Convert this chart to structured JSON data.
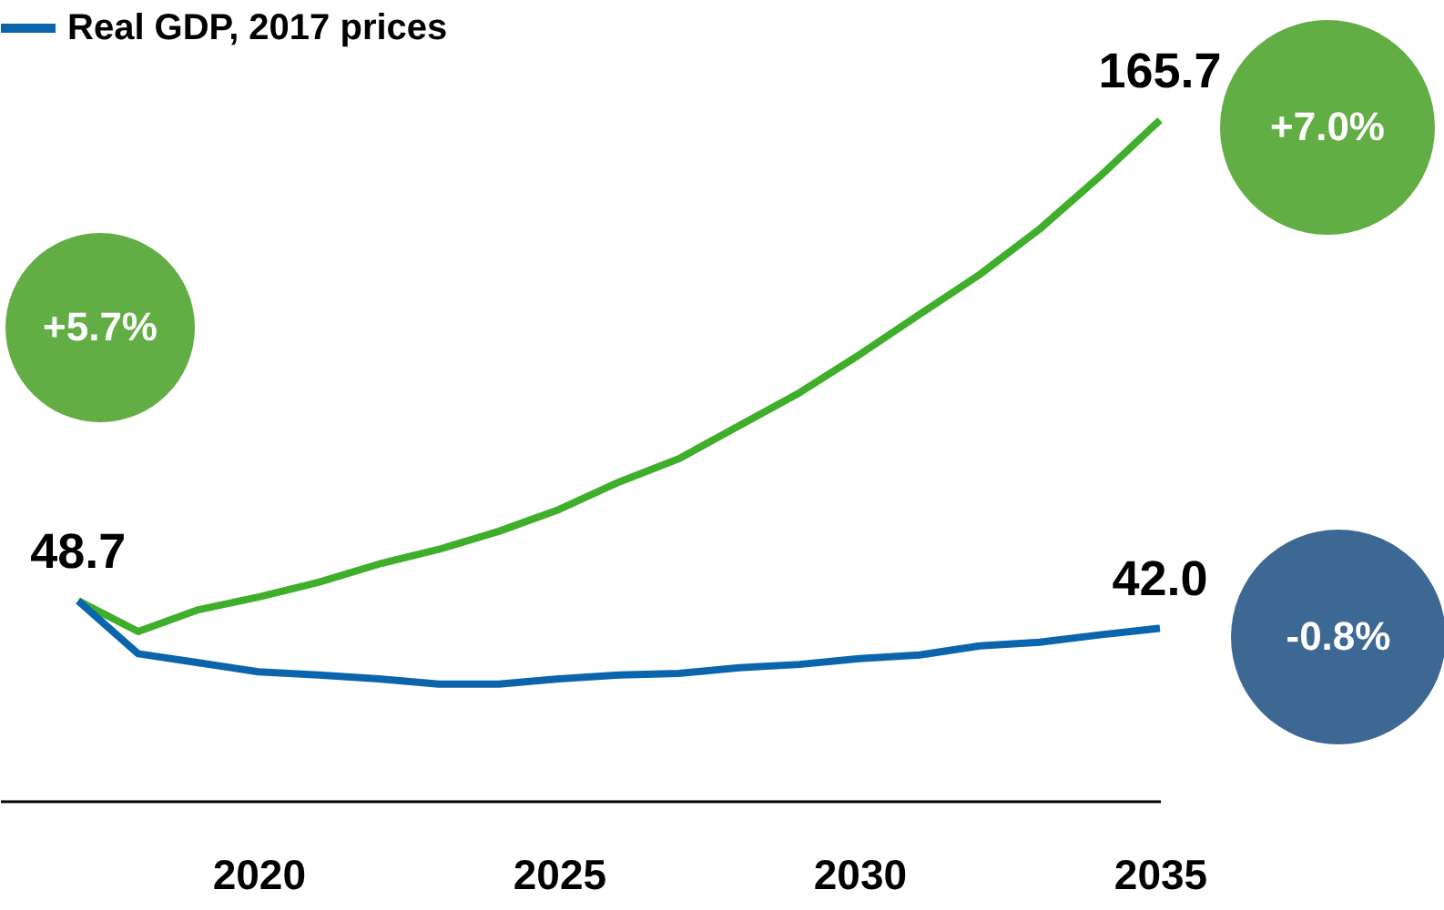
{
  "chart_data": {
    "type": "line",
    "x": [
      2017,
      2018,
      2019,
      2020,
      2021,
      2022,
      2023,
      2024,
      2025,
      2026,
      2027,
      2028,
      2029,
      2030,
      2031,
      2032,
      2033,
      2034,
      2035
    ],
    "series": [
      {
        "color": "#3fae2a",
        "values": [
          48.7,
          41.2,
          46.5,
          49.6,
          53.2,
          57.6,
          61.2,
          65.6,
          70.9,
          77.6,
          83.3,
          91.3,
          99.3,
          108.6,
          118.4,
          128.1,
          139.2,
          152.0,
          165.7
        ],
        "value_labels": [
          null,
          null,
          null,
          null,
          null,
          null,
          null,
          null,
          null,
          null,
          null,
          null,
          null,
          null,
          null,
          null,
          null,
          null,
          "165.7"
        ]
      },
      {
        "name": "Real GDP, 2017 prices",
        "color": "#0a65ad",
        "values": [
          48.7,
          35.8,
          33.6,
          31.4,
          30.6,
          29.7,
          28.4,
          28.4,
          29.7,
          30.6,
          31.0,
          32.4,
          33.2,
          34.6,
          35.5,
          37.7,
          38.6,
          40.4,
          42.0
        ],
        "value_labels": [
          "48.7",
          null,
          null,
          null,
          null,
          null,
          null,
          null,
          null,
          null,
          null,
          null,
          null,
          null,
          null,
          null,
          null,
          null,
          "42.0"
        ]
      }
    ],
    "xlim": [
      2015.7,
      2035
    ],
    "xticks": [
      2020,
      2025,
      2030,
      2035
    ],
    "tick_labels": "x",
    "grid": false,
    "legend": "top left",
    "annotations": [
      "+5.7%",
      "+7.0%",
      "-0.8%"
    ]
  }
}
